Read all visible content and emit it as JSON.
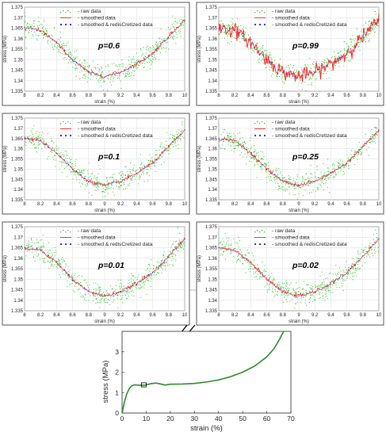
{
  "chart_data": [
    {
      "type": "scatter",
      "panel": 1,
      "p_label": "p=0.6",
      "xlabel": "strain (%)",
      "ylabel": "stress (MPa)",
      "xlim": [
        8,
        10
      ],
      "ylim": [
        1.335,
        1.375
      ],
      "xticks": [
        "8",
        "8.2",
        "8.4",
        "8.6",
        "8.8",
        "9",
        "9.2",
        "9.4",
        "9.6",
        "9.8",
        "10"
      ],
      "yticks": [
        "1.335",
        "1.34",
        "1.345",
        "1.35",
        "1.355",
        "1.36",
        "1.365",
        "1.37",
        "1.375"
      ],
      "grid": true,
      "legend_position": "top-center",
      "series": [
        {
          "name": "- raw data",
          "style": "dots",
          "color": "#00cc00"
        },
        {
          "name": "- smoothed data",
          "style": "line",
          "color": "#ff0000"
        },
        {
          "name": "- smoothed & redisCretized data",
          "style": "dots",
          "color": "#0000ff"
        }
      ],
      "x": [
        8.0,
        8.2,
        8.4,
        8.6,
        8.8,
        9.0,
        9.2,
        9.4,
        9.6,
        9.8,
        10.0
      ],
      "values_smoothed": [
        1.365,
        1.364,
        1.358,
        1.35,
        1.344,
        1.342,
        1.344,
        1.348,
        1.353,
        1.361,
        1.369
      ],
      "raw_spread": 0.003
    },
    {
      "type": "scatter",
      "panel": 2,
      "p_label": "p=0.99",
      "xlabel": "strain (%)",
      "ylabel": "stress (MPa)",
      "xlim": [
        8,
        10
      ],
      "ylim": [
        1.335,
        1.375
      ],
      "xticks": [
        "8",
        "8.2",
        "8.4",
        "8.6",
        "8.8",
        "9",
        "9.2",
        "9.4",
        "9.6",
        "9.8",
        "10"
      ],
      "yticks": [
        "1.335",
        "1.34",
        "1.345",
        "1.35",
        "1.355",
        "1.36",
        "1.365",
        "1.37",
        "1.375"
      ],
      "grid": true,
      "legend_position": "top-center",
      "series": [
        {
          "name": "- raw data",
          "style": "dots",
          "color": "#00cc00"
        },
        {
          "name": "- smoothed data",
          "style": "line",
          "color": "#ff0000"
        },
        {
          "name": "- smoothed & redisCretized data",
          "style": "dots",
          "color": "#0000ff"
        }
      ],
      "x": [
        8.0,
        8.2,
        8.4,
        8.6,
        8.8,
        9.0,
        9.2,
        9.4,
        9.6,
        9.8,
        10.0
      ],
      "values_smoothed": [
        1.365,
        1.364,
        1.358,
        1.35,
        1.344,
        1.342,
        1.344,
        1.348,
        1.353,
        1.361,
        1.369
      ],
      "raw_spread": 0.003
    },
    {
      "type": "scatter",
      "panel": 3,
      "p_label": "p=0.1",
      "xlabel": "strain (%)",
      "ylabel": "stress (MPa)",
      "xlim": [
        8,
        10
      ],
      "ylim": [
        1.335,
        1.375
      ],
      "xticks": [
        "8",
        "8.2",
        "8.4",
        "8.6",
        "8.8",
        "9",
        "9.2",
        "9.4",
        "9.6",
        "9.8",
        "10"
      ],
      "yticks": [
        "1.335",
        "1.34",
        "1.345",
        "1.35",
        "1.355",
        "1.36",
        "1.365",
        "1.37",
        "1.375"
      ],
      "grid": true,
      "legend_position": "top-center",
      "series": [
        {
          "name": "- raw data",
          "style": "dots",
          "color": "#00cc00"
        },
        {
          "name": "- smoothed data",
          "style": "line",
          "color": "#ff0000"
        },
        {
          "name": "- smoothed & redisCretized data",
          "style": "dots",
          "color": "#0000ff"
        }
      ],
      "x": [
        8.0,
        8.2,
        8.4,
        8.6,
        8.8,
        9.0,
        9.2,
        9.4,
        9.6,
        9.8,
        10.0
      ],
      "values_smoothed": [
        1.365,
        1.364,
        1.358,
        1.35,
        1.344,
        1.342,
        1.344,
        1.348,
        1.353,
        1.361,
        1.369
      ],
      "raw_spread": 0.003
    },
    {
      "type": "scatter",
      "panel": 4,
      "p_label": "p=0.25",
      "xlabel": "strain (%)",
      "ylabel": "stress (MPa)",
      "xlim": [
        8,
        10
      ],
      "ylim": [
        1.335,
        1.375
      ],
      "xticks": [
        "8",
        "8.2",
        "8.4",
        "8.6",
        "8.8",
        "9",
        "9.2",
        "9.4",
        "9.6",
        "9.8",
        "10"
      ],
      "yticks": [
        "1.335",
        "1.34",
        "1.345",
        "1.35",
        "1.355",
        "1.36",
        "1.365",
        "1.37",
        "1.375"
      ],
      "grid": true,
      "legend_position": "top-center",
      "series": [
        {
          "name": "- raw data",
          "style": "dots",
          "color": "#00cc00"
        },
        {
          "name": "- smoothed data",
          "style": "line",
          "color": "#ff0000"
        },
        {
          "name": "- smoothed & redisCretized data",
          "style": "dots",
          "color": "#0000ff"
        }
      ],
      "x": [
        8.0,
        8.2,
        8.4,
        8.6,
        8.8,
        9.0,
        9.2,
        9.4,
        9.6,
        9.8,
        10.0
      ],
      "values_smoothed": [
        1.365,
        1.364,
        1.358,
        1.35,
        1.344,
        1.342,
        1.344,
        1.348,
        1.353,
        1.361,
        1.369
      ],
      "raw_spread": 0.003
    },
    {
      "type": "scatter",
      "panel": 5,
      "p_label": "p=0.01",
      "xlabel": "strain (%)",
      "ylabel": "stress (MPa)",
      "xlim": [
        8,
        10
      ],
      "ylim": [
        1.335,
        1.375
      ],
      "xticks": [
        "8",
        "8.2",
        "8.4",
        "8.6",
        "8.8",
        "9",
        "9.2",
        "9.4",
        "9.6",
        "9.8",
        "10"
      ],
      "yticks": [
        "1.335",
        "1.34",
        "1.345",
        "1.35",
        "1.355",
        "1.36",
        "1.365",
        "1.37",
        "1.375"
      ],
      "grid": true,
      "legend_position": "top-center",
      "series": [
        {
          "name": "- raw data",
          "style": "dots",
          "color": "#00cc00"
        },
        {
          "name": "- smoothed data",
          "style": "line",
          "color": "#ff0000"
        },
        {
          "name": "- smoothed & redisCretized data",
          "style": "dots",
          "color": "#0000ff"
        }
      ],
      "x": [
        8.0,
        8.2,
        8.4,
        8.6,
        8.8,
        9.0,
        9.2,
        9.4,
        9.6,
        9.8,
        10.0
      ],
      "values_smoothed": [
        1.365,
        1.364,
        1.358,
        1.35,
        1.344,
        1.342,
        1.344,
        1.348,
        1.353,
        1.361,
        1.369
      ],
      "raw_spread": 0.003
    },
    {
      "type": "scatter",
      "panel": 6,
      "p_label": "p=0.02",
      "xlabel": "strain (%)",
      "ylabel": "stress (MPa)",
      "xlim": [
        8,
        10
      ],
      "ylim": [
        1.335,
        1.375
      ],
      "xticks": [
        "8",
        "8.2",
        "8.4",
        "8.6",
        "8.8",
        "9",
        "9.2",
        "9.4",
        "9.6",
        "9.8",
        "10"
      ],
      "yticks": [
        "1.335",
        "1.34",
        "1.345",
        "1.35",
        "1.355",
        "1.36",
        "1.365",
        "1.37",
        "1.375"
      ],
      "grid": true,
      "legend_position": "top-center",
      "series": [
        {
          "name": "- raw data",
          "style": "dots",
          "color": "#00cc00"
        },
        {
          "name": "- smoothed data",
          "style": "line",
          "color": "#ff0000"
        },
        {
          "name": "- smoothed & redisCretized data",
          "style": "dots",
          "color": "#0000ff"
        }
      ],
      "x": [
        8.0,
        8.2,
        8.4,
        8.6,
        8.8,
        9.0,
        9.2,
        9.4,
        9.6,
        9.8,
        10.0
      ],
      "values_smoothed": [
        1.365,
        1.364,
        1.358,
        1.35,
        1.344,
        1.342,
        1.344,
        1.348,
        1.353,
        1.361,
        1.369
      ],
      "raw_spread": 0.003
    },
    {
      "type": "line",
      "panel": "main",
      "xlabel": "strain (%)",
      "ylabel": "stress (MPa)",
      "xlim": [
        0,
        70
      ],
      "ylim": [
        0,
        4
      ],
      "xticks": [
        "0",
        "10",
        "20",
        "30",
        "40",
        "50",
        "60",
        "70"
      ],
      "yticks": [
        "0",
        "1",
        "2",
        "3"
      ],
      "grid": false,
      "series": [
        {
          "name": "",
          "color": "#2e8b2e",
          "x": [
            0,
            1,
            2,
            3,
            4,
            5,
            6,
            7,
            8,
            9,
            10,
            12,
            14,
            16,
            18,
            20,
            25,
            30,
            35,
            40,
            45,
            50,
            55,
            60,
            63,
            65,
            67
          ],
          "y": [
            0,
            0.55,
            0.95,
            1.2,
            1.33,
            1.38,
            1.37,
            1.36,
            1.36,
            1.36,
            1.38,
            1.44,
            1.47,
            1.42,
            1.37,
            1.41,
            1.42,
            1.45,
            1.52,
            1.62,
            1.78,
            2.0,
            2.3,
            2.75,
            3.15,
            3.55,
            4.0
          ]
        }
      ],
      "zoom_box": {
        "x": [
          8,
          10
        ],
        "y": [
          1.28,
          1.48
        ]
      }
    }
  ]
}
